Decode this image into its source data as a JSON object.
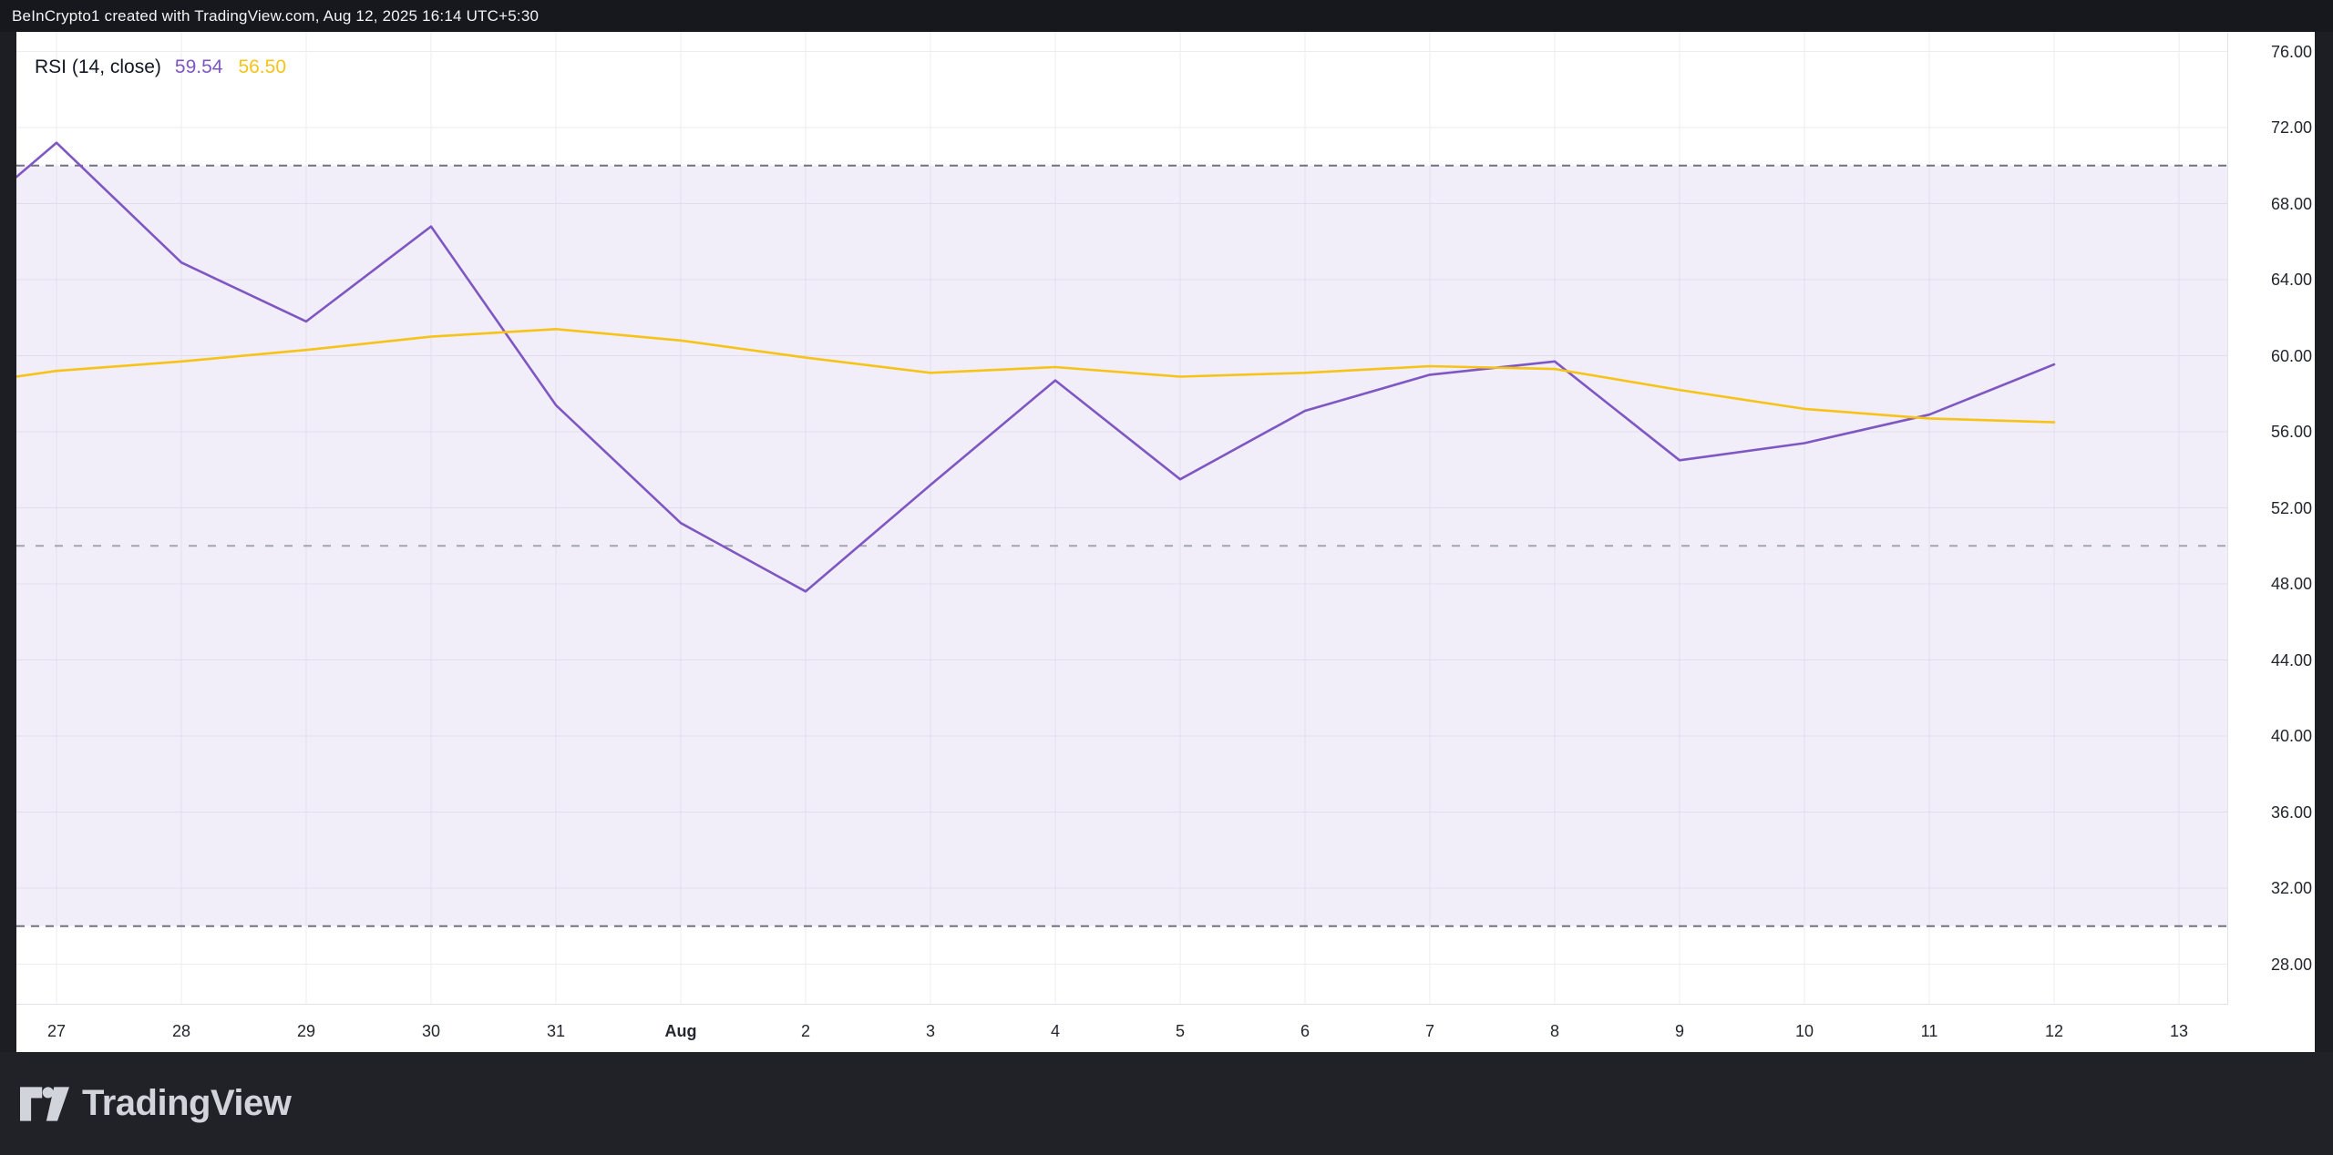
{
  "top_bar": {
    "attribution": "BeInCrypto1 created with TradingView.com, Aug 12, 2025 16:14 UTC+5:30"
  },
  "legend": {
    "indicator_label": "RSI (14, close)",
    "rsi_value": "59.54",
    "ma_value": "56.50"
  },
  "chart_data": {
    "type": "line",
    "title": "RSI (14, close)",
    "xlabel": "",
    "ylabel": "",
    "ylim": [
      28,
      76
    ],
    "grid": true,
    "legend_position": "top-left",
    "categories": [
      "27",
      "28",
      "29",
      "30",
      "31",
      "Aug",
      "2",
      "3",
      "4",
      "5",
      "6",
      "7",
      "8",
      "9",
      "10",
      "11",
      "12",
      "13"
    ],
    "bold_category": "Aug",
    "y_ticks": [
      "76.00",
      "72.00",
      "68.00",
      "64.00",
      "60.00",
      "56.00",
      "52.00",
      "48.00",
      "44.00",
      "40.00",
      "36.00",
      "32.00",
      "28.00"
    ],
    "bands": {
      "upper": 70,
      "middle": 50,
      "lower": 30
    },
    "series": [
      {
        "name": "RSI",
        "color": "#7E57C2",
        "edge_value": 69.4,
        "values": [
          71.2,
          64.9,
          61.8,
          66.8,
          57.4,
          51.2,
          47.6,
          53.2,
          58.7,
          53.5,
          57.1,
          59.0,
          59.7,
          54.5,
          55.4,
          56.9,
          59.54,
          null
        ]
      },
      {
        "name": "RSI-based MA",
        "color": "#F6C317",
        "edge_value": 58.9,
        "values": [
          59.2,
          59.7,
          60.3,
          61.0,
          61.4,
          60.8,
          59.9,
          59.1,
          59.4,
          58.9,
          59.1,
          59.45,
          59.3,
          58.2,
          57.2,
          56.7,
          56.5,
          null
        ]
      }
    ]
  },
  "footer": {
    "brand": "TradingView"
  },
  "colors": {
    "purple": "#7E57C2",
    "yellow": "#F6C317",
    "band_fill": "rgba(126,87,194,0.10)",
    "grid": "#ecedf2",
    "dash_strong": "#6F727C",
    "dash_light": "#A2A5AE",
    "panel": "#ffffff",
    "dark_background": "#1c1e24",
    "axis_text": "#24262E"
  }
}
